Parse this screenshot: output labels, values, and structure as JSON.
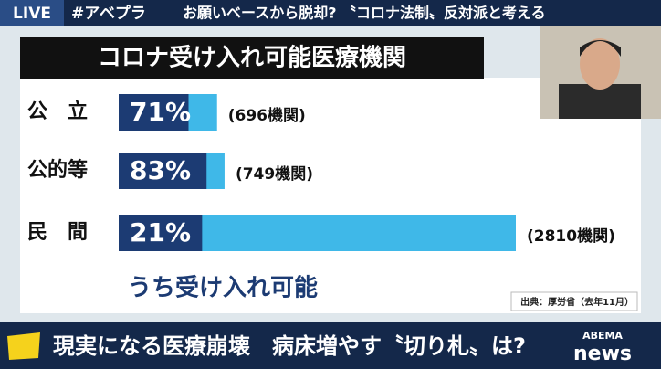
{
  "header": {
    "live": "LIVE",
    "hashtag": "#アベプラ",
    "headline": "お願いベースから脱却? 〝コロナ法制〟反対派と考える"
  },
  "chart_data": {
    "type": "bar",
    "orientation": "horizontal",
    "title": "コロナ受け入れ可能医療機関",
    "categories": [
      "公　立",
      "公的等",
      "民　間"
    ],
    "counts": {
      "color": "#3fb8e8",
      "values": [
        696,
        749,
        2810
      ],
      "value_labels": [
        "(696機関)",
        "(749機関)",
        "(2810機関)"
      ]
    },
    "share": {
      "name": "うち受け入れ可能",
      "color": "#1c3b73",
      "values": [
        71,
        83,
        21
      ],
      "value_labels": [
        "71%",
        "83%",
        "21%"
      ]
    },
    "source": "出典：厚労省（去年11月）"
  },
  "footer": {
    "caption": "現実になる医療崩壊　病床増やす〝切り札〟は?",
    "logo_top": "ABEMA",
    "logo_bottom": "news"
  }
}
